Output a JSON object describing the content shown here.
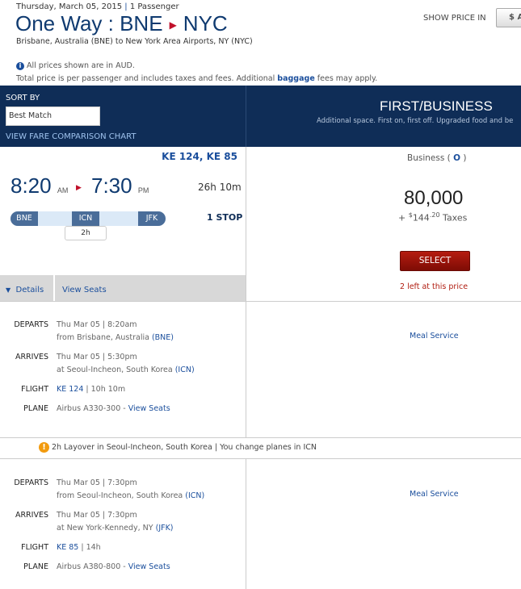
{
  "header": {
    "date": "Thursday, March 05, 2015",
    "passengers": "1 Passenger",
    "trip_type": "One Way :",
    "origin": "BNE",
    "destination": "NYC",
    "subtitle": "Brisbane, Australia (BNE) to New York Area Airports, NY (NYC)",
    "show_price_in": "SHOW PRICE IN",
    "currency_button": "$ A",
    "info": "All prices shown are in AUD.",
    "total_pre": "Total price is per passenger and includes taxes and fees. Additional ",
    "baggage_link": "baggage",
    "total_post": " fees may apply."
  },
  "sort": {
    "label": "SORT BY",
    "value": "Best Match",
    "fare_chart": "VIEW FARE COMPARISON CHART"
  },
  "cabin": {
    "title": "FIRST/BUSINESS",
    "desc": "Additional space. First on, first off. Upgraded food and be"
  },
  "itinerary": {
    "flights": "KE 124, KE 85",
    "dep_time": "8:20",
    "dep_ampm": "AM",
    "arr_time": "7:30",
    "arr_ampm": "PM",
    "duration": "26h 10m",
    "airports": [
      "BNE",
      "ICN",
      "JFK"
    ],
    "layover": "2h",
    "stops": "1 STOP",
    "details": "Details",
    "view_seats": "View Seats"
  },
  "fare": {
    "class": "Business (",
    "code": "O",
    "class_end": ")",
    "miles": "80,000",
    "tax_prefix": "+ ",
    "tax_symbol": "$",
    "tax_whole": "144",
    "tax_cents": ".20",
    "tax_label": " Taxes",
    "select": "SELECT",
    "availability": "2 left at this price"
  },
  "labels": {
    "departs": "DEPARTS",
    "arrives": "ARRIVES",
    "flight": "FLIGHT",
    "plane": "PLANE",
    "view_seats": "View Seats",
    "meal": "Meal Service"
  },
  "segments": [
    {
      "dep_date": "Thu Mar 05 | 8:20am",
      "dep_from": "from Brisbane, Australia ",
      "dep_code": "(BNE)",
      "arr_date": "Thu Mar 05 | 5:30pm",
      "arr_at": "at Seoul-Incheon, South Korea ",
      "arr_code": "(ICN)",
      "flight": "KE 124",
      "duration": " | 10h 10m",
      "plane": "Airbus A330-300 - "
    },
    {
      "dep_date": "Thu Mar 05 | 7:30pm",
      "dep_from": "from Seoul-Incheon, South Korea ",
      "dep_code": "(ICN)",
      "arr_date": "Thu Mar 05 | 7:30pm",
      "arr_at": "at New York-Kennedy, NY ",
      "arr_code": "(JFK)",
      "flight": "KE 85",
      "duration": " | 14h",
      "plane": "Airbus A380-800 - "
    }
  ],
  "layover_notice": "2h Layover in Seoul-Incheon, South Korea | You change planes in ICN"
}
